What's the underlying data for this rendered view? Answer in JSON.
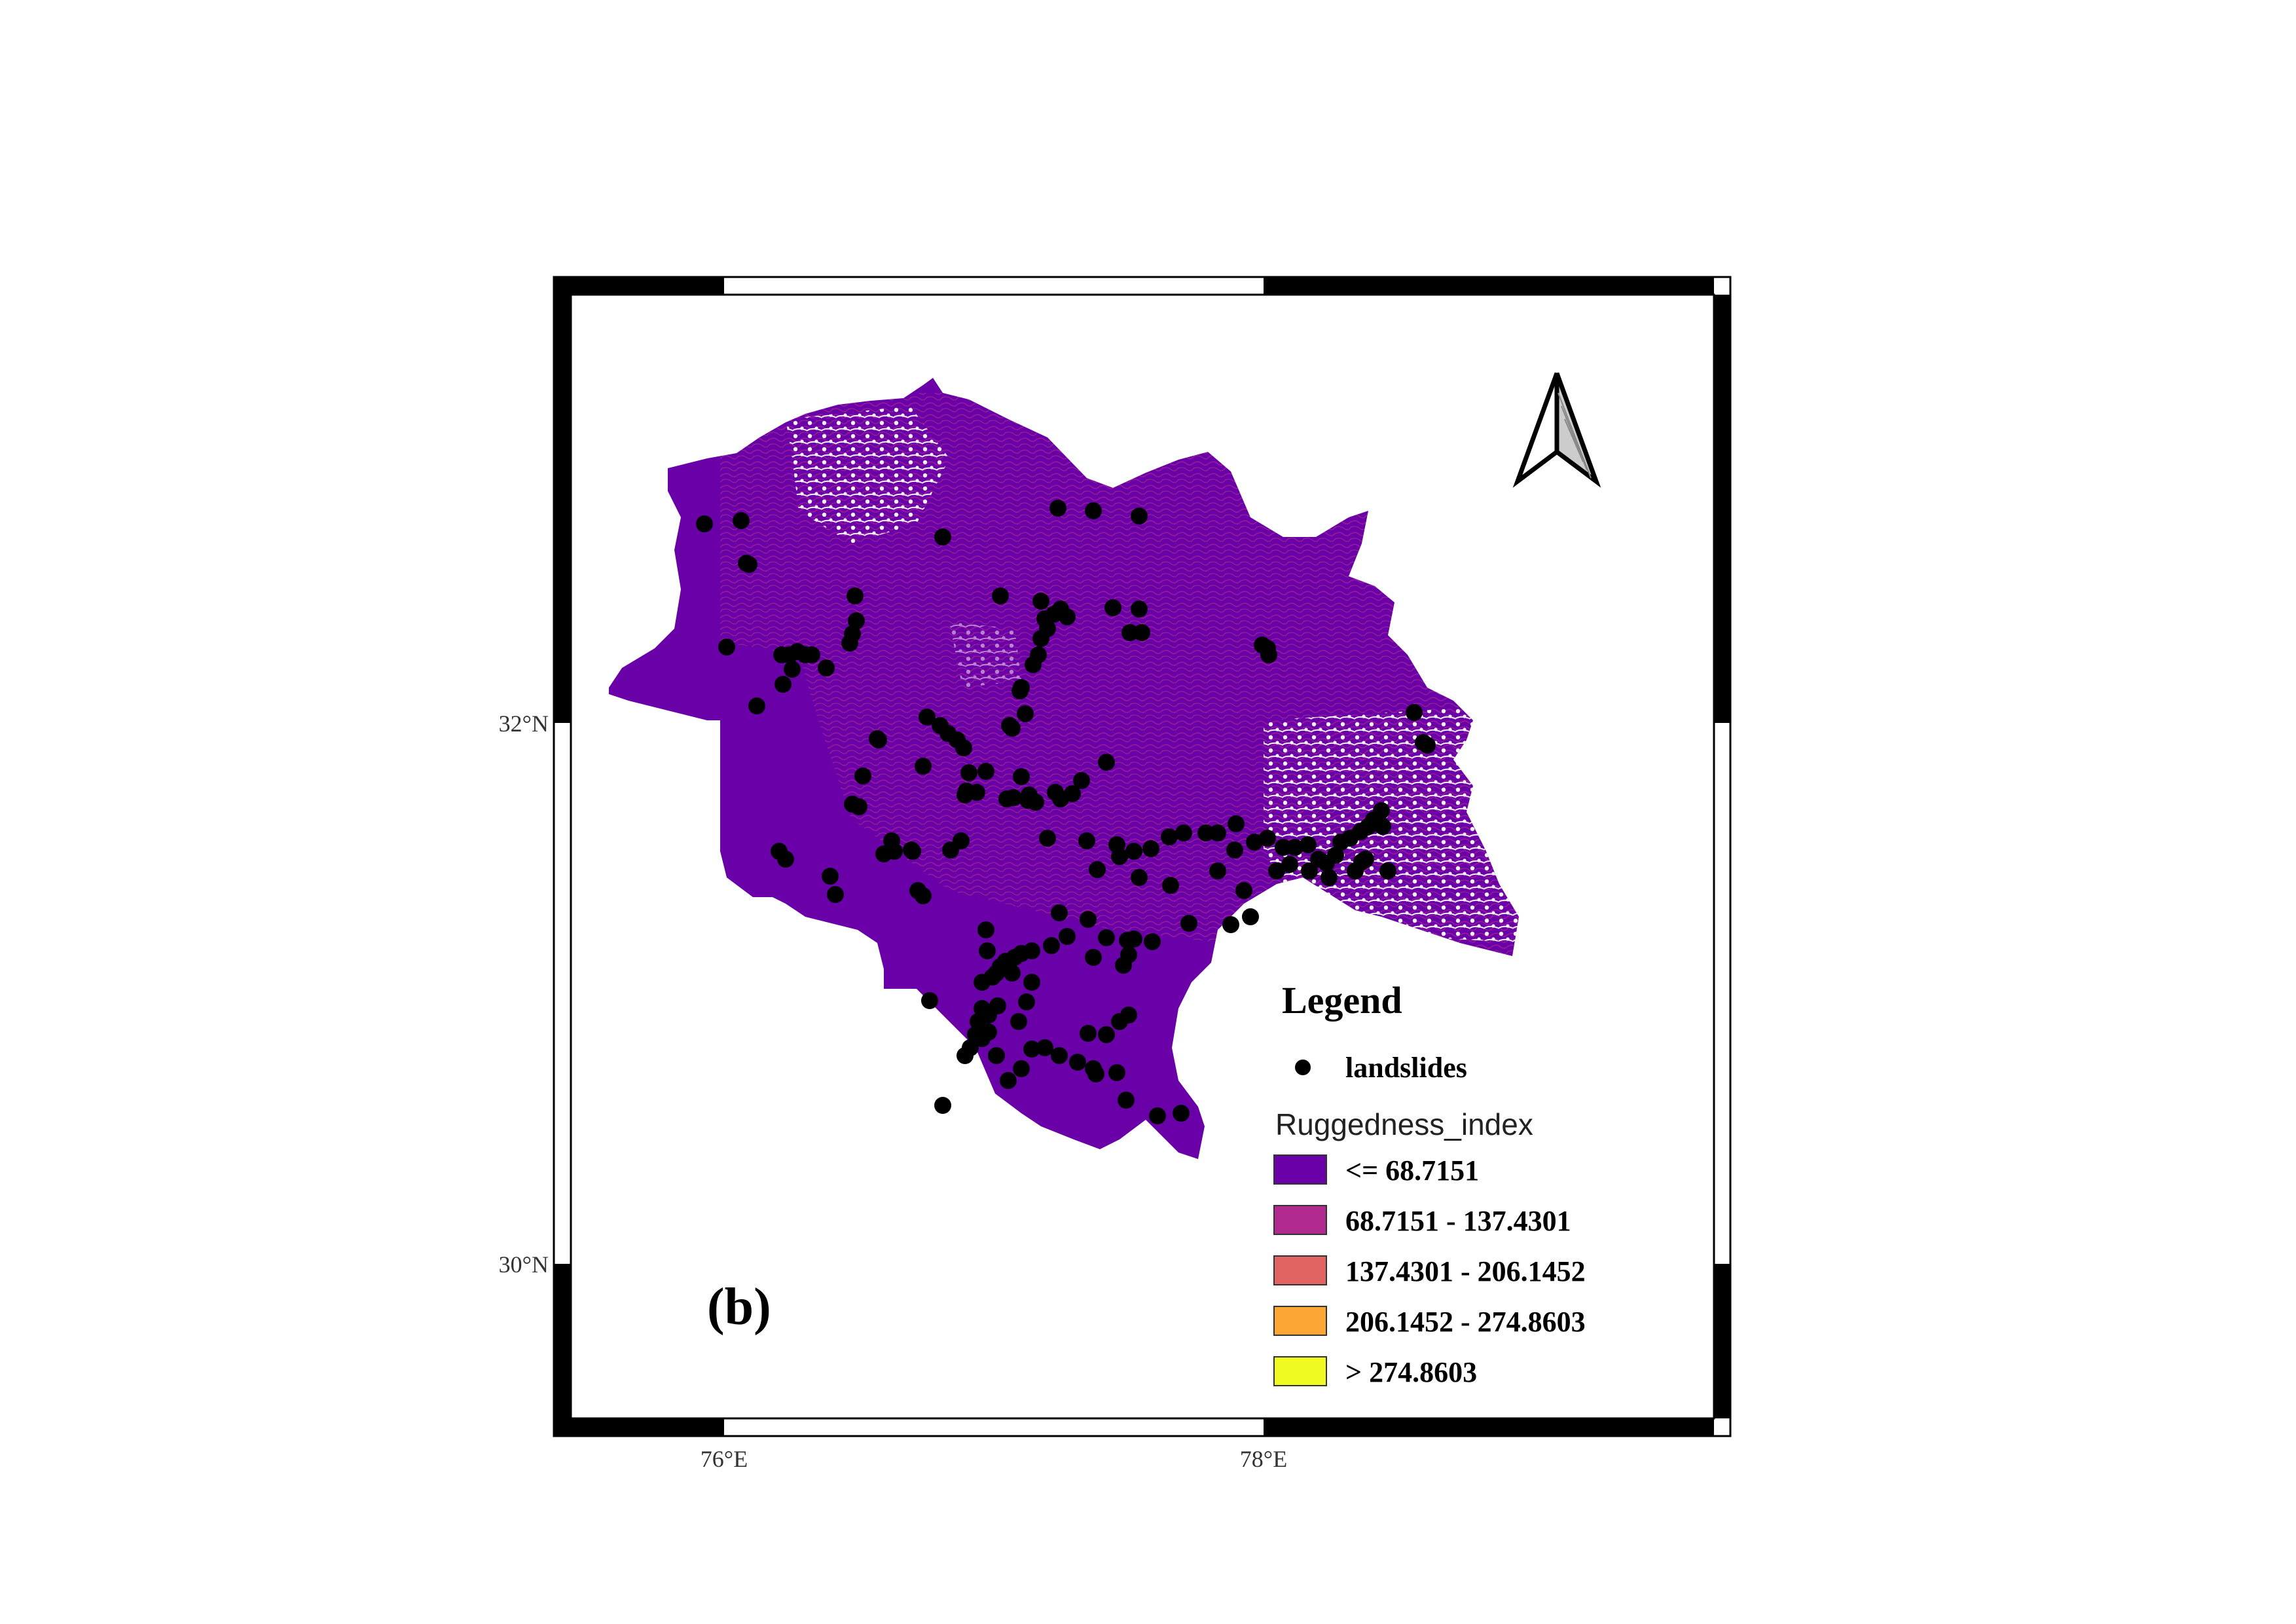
{
  "map": {
    "panel_label": "(b)",
    "lat_labels": [
      "32°N",
      "30°N"
    ],
    "lon_labels": [
      "76°E",
      "78°E"
    ],
    "north_arrow": "north-arrow-icon"
  },
  "legend": {
    "title": "Legend",
    "point_label": "landslides",
    "field_name": "Ruggedness_index",
    "classes": [
      {
        "label": "<= 68.7151",
        "color": "#6a00a8"
      },
      {
        "label": "68.7151 - 137.4301",
        "color": "#b12a90"
      },
      {
        "label": "137.4301 - 206.1452",
        "color": "#e16462"
      },
      {
        "label": "206.1452 - 274.8603",
        "color": "#fca636"
      },
      {
        "label": "> 274.8603",
        "color": "#f0f921"
      }
    ]
  },
  "colors": {
    "region_fill": "#6a00a8",
    "region_texture": "#b12a90",
    "landslide_point": "#000000"
  }
}
